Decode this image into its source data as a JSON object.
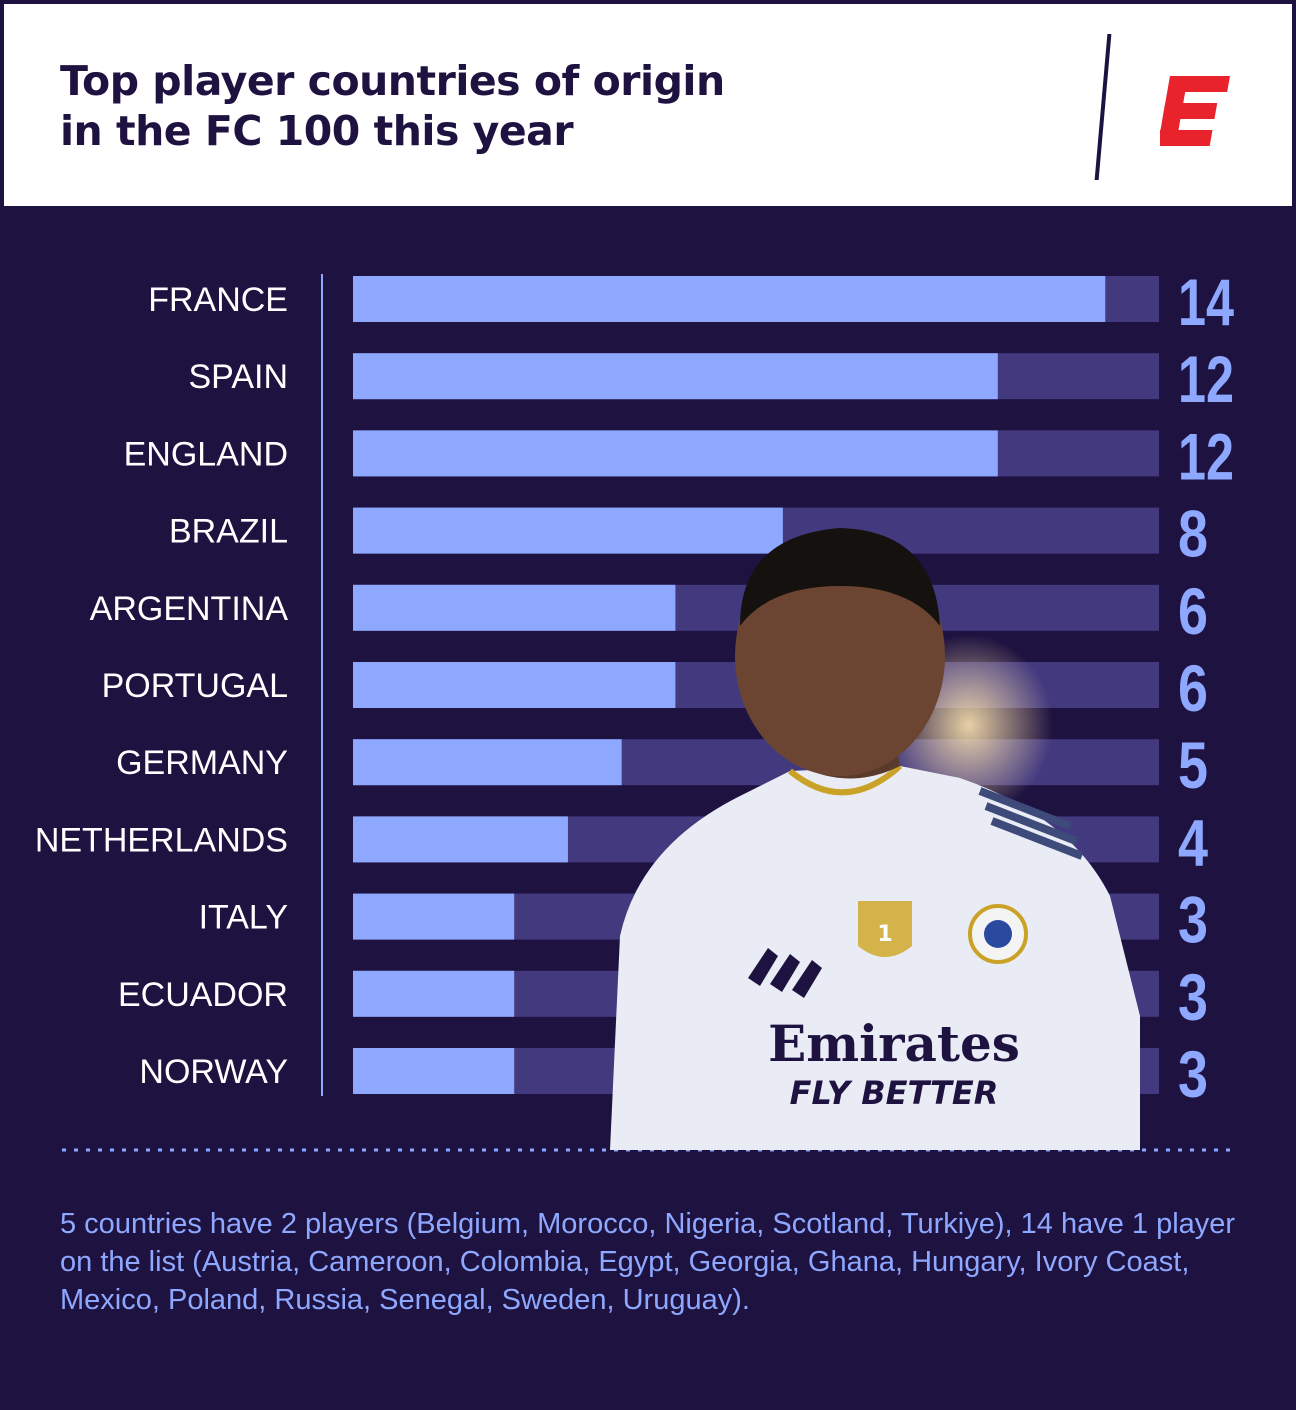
{
  "header": {
    "title_line1": "Top player countries of origin",
    "title_line2": "in the FC 100 this year"
  },
  "logo": {
    "name": "espn-logo-icon",
    "color": "#e8232b"
  },
  "colors": {
    "background": "#1e1240",
    "bar_fill": "#8ea8ff",
    "bar_track": "#43397f",
    "value_text": "#8ea8ff",
    "label_text": "#ffffff"
  },
  "chart_data": {
    "type": "bar",
    "orientation": "horizontal",
    "categories": [
      "FRANCE",
      "SPAIN",
      "ENGLAND",
      "BRAZIL",
      "ARGENTINA",
      "PORTUGAL",
      "GERMANY",
      "NETHERLANDS",
      "ITALY",
      "ECUADOR",
      "NORWAY"
    ],
    "values": [
      14,
      12,
      12,
      8,
      6,
      6,
      5,
      4,
      3,
      3,
      3
    ],
    "value_labels": [
      "14",
      "12",
      "12",
      "8",
      "6",
      "6",
      "5",
      "4",
      "3",
      "3",
      "3"
    ],
    "xlim": [
      0,
      15
    ],
    "grid": false
  },
  "image": {
    "name": "player-photo",
    "shirt_sponsor_line1": "Emirates",
    "shirt_sponsor_line2": "FLY BETTER"
  },
  "footnote": "5 countries have 2 players (Belgium, Morocco, Nigeria, Scotland, Turkiye), 14 have 1 player on the list (Austria, Cameroon, Colombia, Egypt, Georgia, Ghana, Hungary, Ivory Coast, Mexico, Poland, Russia, Senegal, Sweden, Uruguay)."
}
